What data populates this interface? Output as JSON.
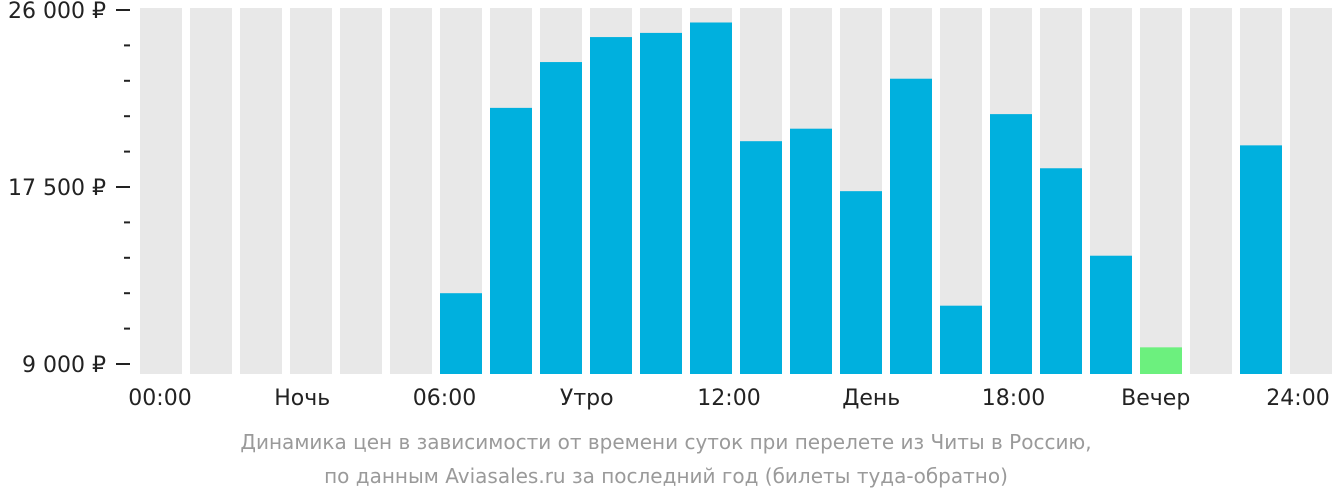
{
  "chart_data": {
    "type": "bar",
    "y_tick_labels": [
      "26 000 ₽",
      "17 500 ₽",
      "9 000 ₽"
    ],
    "y_tick_values": [
      26000,
      17500,
      9000
    ],
    "ylim": [
      9000,
      26000
    ],
    "x_tick_labels": [
      "00:00",
      "Ночь",
      "06:00",
      "Утро",
      "12:00",
      "День",
      "18:00",
      "Вечер",
      "24:00"
    ],
    "hours": [
      0,
      1,
      2,
      3,
      4,
      5,
      6,
      7,
      8,
      9,
      10,
      11,
      12,
      13,
      14,
      15,
      16,
      17,
      18,
      19,
      20,
      21,
      22,
      23
    ],
    "values": [
      null,
      null,
      null,
      null,
      null,
      null,
      12400,
      21300,
      23500,
      24700,
      24900,
      25400,
      19700,
      20300,
      17300,
      22700,
      11800,
      21000,
      18400,
      14200,
      9800,
      null,
      19500,
      null
    ],
    "cheapest_hour": 20,
    "grid": false
  },
  "colors": {
    "background_column": "#e8e8e8",
    "bar": "#00b0de",
    "bar_cheapest": "#6cf07e",
    "axis_text": "#222222",
    "caption_text": "#9a9a9a"
  },
  "caption": {
    "line1": "Динамика цен в зависимости от времени суток при перелете из Читы в Россию,",
    "line2": "по данным Aviasales.ru за последний год (билеты туда-обратно)"
  }
}
